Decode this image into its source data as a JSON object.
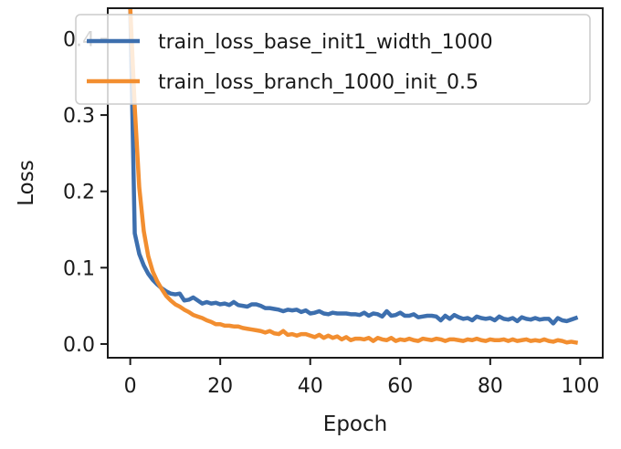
{
  "chart_data": {
    "type": "line",
    "title": "",
    "xlabel": "Epoch",
    "ylabel": "Loss",
    "xlim": [
      -5,
      105
    ],
    "ylim": [
      -0.018,
      0.44
    ],
    "xticks": [
      0,
      20,
      40,
      60,
      80,
      100
    ],
    "yticks": [
      0.0,
      0.1,
      0.2,
      0.3,
      0.4
    ],
    "xtick_labels": [
      "0",
      "20",
      "40",
      "60",
      "80",
      "100"
    ],
    "ytick_labels": [
      "0.0",
      "0.1",
      "0.2",
      "0.3",
      "0.4"
    ],
    "grid": false,
    "legend_position": "top-right",
    "series": [
      {
        "name": "train_loss_base_init1_width_1000",
        "color": "#3d6fae",
        "x": [
          0,
          1,
          2,
          3,
          4,
          5,
          6,
          7,
          8,
          9,
          10,
          11,
          12,
          13,
          14,
          15,
          16,
          17,
          18,
          19,
          20,
          21,
          22,
          23,
          24,
          25,
          26,
          27,
          28,
          29,
          30,
          31,
          32,
          33,
          34,
          35,
          36,
          37,
          38,
          39,
          40,
          41,
          42,
          43,
          44,
          45,
          46,
          47,
          48,
          49,
          50,
          51,
          52,
          53,
          54,
          55,
          56,
          57,
          58,
          59,
          60,
          61,
          62,
          63,
          64,
          65,
          66,
          67,
          68,
          69,
          70,
          71,
          72,
          73,
          74,
          75,
          76,
          77,
          78,
          79,
          80,
          81,
          82,
          83,
          84,
          85,
          86,
          87,
          88,
          89,
          90,
          91,
          92,
          93,
          94,
          95,
          96,
          97,
          98,
          99
        ],
        "y": [
          0.44,
          0.145,
          0.118,
          0.103,
          0.092,
          0.084,
          0.078,
          0.073,
          0.069,
          0.066,
          0.065,
          0.066,
          0.057,
          0.058,
          0.061,
          0.057,
          0.053,
          0.055,
          0.053,
          0.054,
          0.052,
          0.053,
          0.051,
          0.055,
          0.051,
          0.05,
          0.049,
          0.052,
          0.052,
          0.05,
          0.047,
          0.047,
          0.046,
          0.045,
          0.043,
          0.045,
          0.044,
          0.045,
          0.042,
          0.044,
          0.04,
          0.041,
          0.043,
          0.04,
          0.039,
          0.041,
          0.04,
          0.04,
          0.04,
          0.039,
          0.039,
          0.038,
          0.041,
          0.037,
          0.04,
          0.039,
          0.036,
          0.043,
          0.037,
          0.038,
          0.041,
          0.037,
          0.037,
          0.039,
          0.035,
          0.036,
          0.037,
          0.037,
          0.036,
          0.031,
          0.037,
          0.033,
          0.038,
          0.035,
          0.033,
          0.034,
          0.031,
          0.036,
          0.034,
          0.033,
          0.034,
          0.031,
          0.036,
          0.033,
          0.032,
          0.034,
          0.03,
          0.035,
          0.033,
          0.032,
          0.034,
          0.032,
          0.033,
          0.033,
          0.027,
          0.034,
          0.031,
          0.03,
          0.032,
          0.034
        ]
      },
      {
        "name": "train_loss_branch_1000_init_0.5",
        "color": "#f28e30",
        "x": [
          0,
          1,
          2,
          3,
          4,
          5,
          6,
          7,
          8,
          9,
          10,
          11,
          12,
          13,
          14,
          15,
          16,
          17,
          18,
          19,
          20,
          21,
          22,
          23,
          24,
          25,
          26,
          27,
          28,
          29,
          30,
          31,
          32,
          33,
          34,
          35,
          36,
          37,
          38,
          39,
          40,
          41,
          42,
          43,
          44,
          45,
          46,
          47,
          48,
          49,
          50,
          51,
          52,
          53,
          54,
          55,
          56,
          57,
          58,
          59,
          60,
          61,
          62,
          63,
          64,
          65,
          66,
          67,
          68,
          69,
          70,
          71,
          72,
          73,
          74,
          75,
          76,
          77,
          78,
          79,
          80,
          81,
          82,
          83,
          84,
          85,
          86,
          87,
          88,
          89,
          90,
          91,
          92,
          93,
          94,
          95,
          96,
          97,
          98,
          99
        ],
        "y": [
          0.44,
          0.31,
          0.205,
          0.148,
          0.115,
          0.095,
          0.082,
          0.072,
          0.063,
          0.057,
          0.052,
          0.049,
          0.045,
          0.042,
          0.038,
          0.036,
          0.034,
          0.031,
          0.029,
          0.026,
          0.026,
          0.024,
          0.024,
          0.023,
          0.023,
          0.021,
          0.02,
          0.019,
          0.018,
          0.017,
          0.015,
          0.017,
          0.014,
          0.013,
          0.017,
          0.012,
          0.013,
          0.011,
          0.013,
          0.013,
          0.011,
          0.009,
          0.012,
          0.008,
          0.011,
          0.008,
          0.01,
          0.006,
          0.009,
          0.005,
          0.007,
          0.007,
          0.006,
          0.008,
          0.004,
          0.008,
          0.006,
          0.005,
          0.008,
          0.004,
          0.006,
          0.005,
          0.007,
          0.005,
          0.004,
          0.007,
          0.006,
          0.005,
          0.007,
          0.006,
          0.004,
          0.006,
          0.006,
          0.005,
          0.004,
          0.006,
          0.005,
          0.007,
          0.005,
          0.004,
          0.006,
          0.005,
          0.005,
          0.006,
          0.004,
          0.006,
          0.004,
          0.005,
          0.006,
          0.004,
          0.005,
          0.004,
          0.006,
          0.004,
          0.003,
          0.005,
          0.004,
          0.002,
          0.003,
          0.002
        ]
      }
    ]
  }
}
